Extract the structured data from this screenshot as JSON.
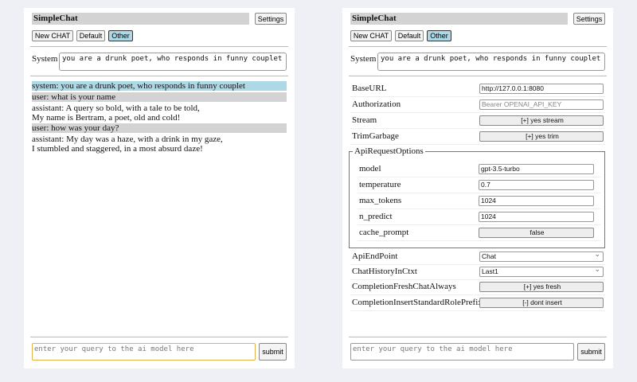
{
  "app": {
    "title": "SimpleChat",
    "settings_label": "Settings"
  },
  "chat_buttons": [
    {
      "label": "New CHAT"
    },
    {
      "label": "Default"
    },
    {
      "label": "Other",
      "active": true
    }
  ],
  "system": {
    "label": "System",
    "value": "you are a drunk poet, who responds in funny couplet"
  },
  "messages": [
    {
      "role": "system",
      "text": "system: you are a drunk poet, who responds in funny couplet"
    },
    {
      "role": "user",
      "text": "user: what is your name"
    },
    {
      "role": "assistant",
      "line1": "assistant: A query so bold, with a tale to be told,",
      "line2": "My name is Bertram, a poet, old and cold!"
    },
    {
      "role": "user",
      "text": "user: how was your day?"
    },
    {
      "role": "assistant",
      "line1": "assistant: My day was a haze, with a drink in my gaze,",
      "line2": "I stumbled and staggered, in a most absurd daze!"
    }
  ],
  "input": {
    "placeholder": "enter your query to the ai model here",
    "submit_label": "submit"
  },
  "settings": {
    "base_url": {
      "label": "BaseURL",
      "value": "http://127.0.0.1:8080"
    },
    "authorization": {
      "label": "Authorization",
      "placeholder": "Bearer OPENAI_API_KEY"
    },
    "stream": {
      "label": "Stream",
      "value": "[+] yes stream"
    },
    "trim_garbage": {
      "label": "TrimGarbage",
      "value": "[+] yes trim"
    },
    "api_request_options": {
      "legend": "ApiRequestOptions",
      "model": {
        "label": "model",
        "value": "gpt-3.5-turbo"
      },
      "temperature": {
        "label": "temperature",
        "value": "0.7"
      },
      "max_tokens": {
        "label": "max_tokens",
        "value": "1024"
      },
      "n_predict": {
        "label": "n_predict",
        "value": "1024"
      },
      "cache_prompt": {
        "label": "cache_prompt",
        "value": "false"
      }
    },
    "api_endpoint": {
      "label": "ApiEndPoint",
      "value": "Chat"
    },
    "chat_history": {
      "label": "ChatHistoryInCtxt",
      "value": "Last1"
    },
    "fresh_chat": {
      "label": "CompletionFreshChatAlways",
      "value": "[+] yes fresh"
    },
    "role_prefix": {
      "label": "CompletionInsertStandardRolePrefix",
      "value": "[-] dont insert"
    }
  },
  "colors": {
    "active_button": "#add8e6",
    "system_msg": "#add8e6",
    "user_msg": "#d3d3d3",
    "input_focus": "#e6b04a"
  }
}
